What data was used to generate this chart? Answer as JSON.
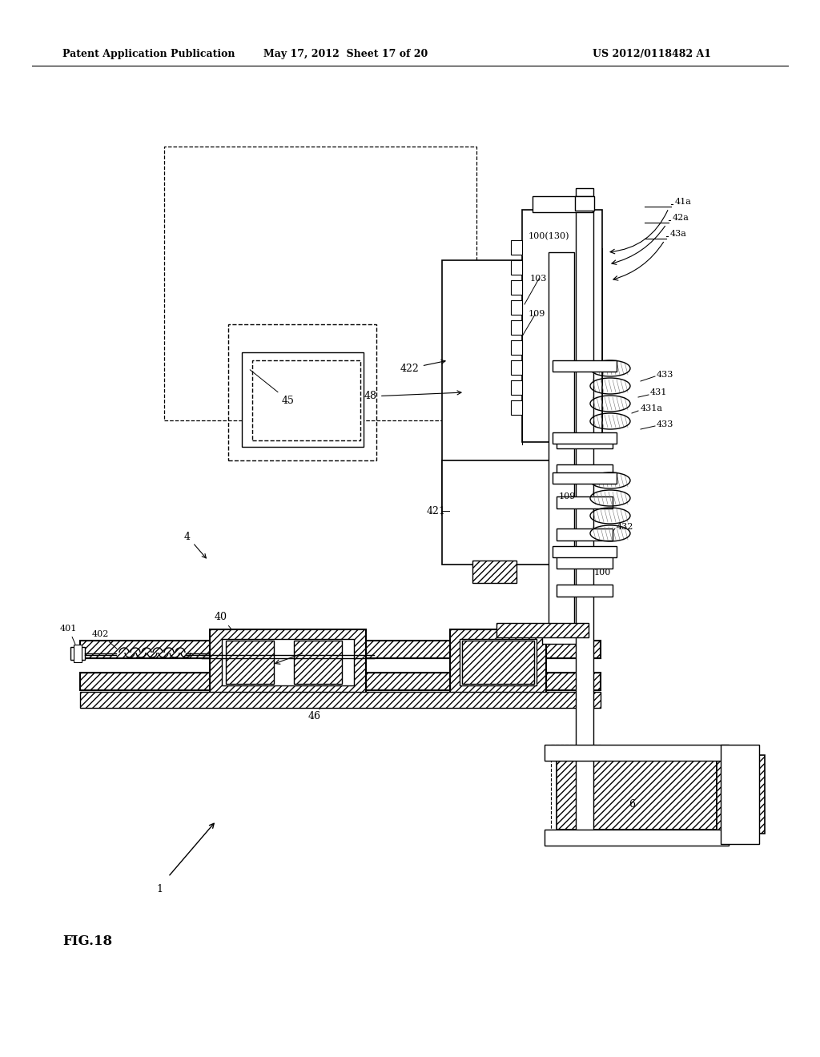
{
  "title_left": "Patent Application Publication",
  "title_mid": "May 17, 2012  Sheet 17 of 20",
  "title_right": "US 2012/0118482 A1",
  "fig_label": "FIG.18",
  "bg_color": "#ffffff"
}
